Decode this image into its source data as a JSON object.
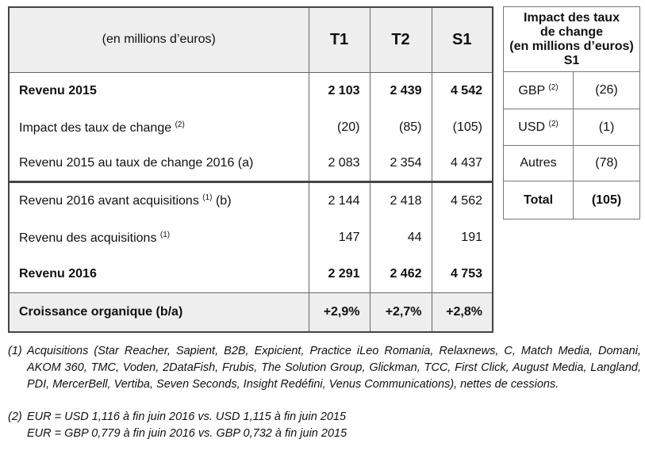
{
  "main_table": {
    "header": [
      "(en millions d’euros)",
      "T1",
      "T2",
      "S1"
    ],
    "rows": [
      {
        "label": {
          "text": "Revenu 2015"
        },
        "values": [
          "2 103",
          "2 439",
          "4 542"
        ]
      },
      {
        "label": {
          "text": "Impact des taux de change",
          "sup": "(2)"
        },
        "values": [
          "(20)",
          "(85)",
          "(105)"
        ]
      },
      {
        "label": {
          "text": "Revenu 2015 au taux de change 2016 (a)"
        },
        "values": [
          "2 083",
          "2 354",
          "4 437"
        ]
      },
      {
        "label": {
          "text": "Revenu 2016 avant acquisitions",
          "sup": "(1)",
          "after": "(b)"
        },
        "values": [
          "2 144",
          "2 418",
          "4 562"
        ]
      },
      {
        "label": {
          "text": "Revenu des acquisitions",
          "sup": "(1)"
        },
        "values": [
          "147",
          "44",
          "191"
        ]
      },
      {
        "label": {
          "text": "Revenu 2016"
        },
        "values": [
          "2 291",
          "2 462",
          "4 753"
        ]
      },
      {
        "label": {
          "text": "Croissance organique (b/a)"
        },
        "values": [
          "+2,9%",
          "+2,7%",
          "+2,8%"
        ]
      }
    ]
  },
  "side_table": {
    "header": {
      "title": "Impact des taux de change",
      "unit": "(en millions d’euros)",
      "period": "S1"
    },
    "rows": [
      {
        "label": {
          "text": "GBP",
          "sup": "(2)"
        },
        "value": "(26)"
      },
      {
        "label": {
          "text": "USD",
          "sup": "(2)"
        },
        "value": "(1)"
      },
      {
        "label": {
          "text": "Autres"
        },
        "value": "(78)"
      },
      {
        "label": {
          "text": "Total"
        },
        "value": "(105)"
      }
    ]
  },
  "footnotes": [
    {
      "marker": "(1)",
      "lines": [
        "Acquisitions (Star Reacher, Sapient, B2B, Expicient, Practice iLeo Romania, Relaxnews, C, Match Media, Domani, AKOM 360, TMC, Voden, 2DataFish, Frubis, The Solution Group, Glickman, TCC, First Click, August Media, Langland, PDI, MercerBell, Vertiba, Seven Seconds, Insight Redéfini, Venus Communications), nettes de cessions."
      ]
    },
    {
      "marker": "(2)",
      "lines": [
        "EUR = USD 1,116 à fin juin 2016 vs. USD 1,115 à fin juin 2015",
        "EUR = GBP 0,779 à fin juin 2016 vs. GBP 0,732 à fin juin 2015"
      ]
    }
  ]
}
